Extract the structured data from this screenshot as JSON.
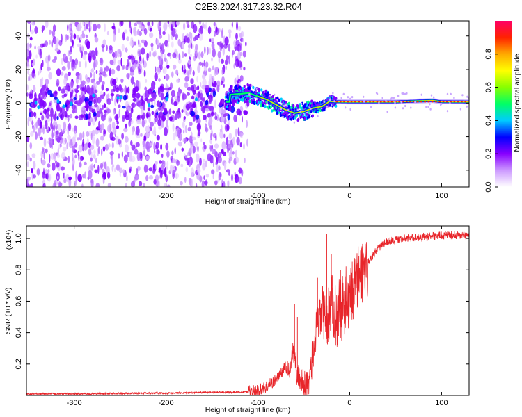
{
  "title": "C2E3.2024.317.23.32.R04",
  "chart_data": [
    {
      "type": "heatmap",
      "xlabel": "Height of straight line (km)",
      "ylabel": "Frequency (Hz)",
      "xlim": [
        -352,
        130
      ],
      "ylim": [
        -50,
        49
      ],
      "x_ticks": [
        -300,
        -200,
        -100,
        0,
        100
      ],
      "y_ticks": [
        -40,
        -20,
        0,
        20,
        40
      ],
      "grid": false,
      "colorbar": {
        "label": "Normalized spectral amplitude",
        "range": [
          0,
          1
        ],
        "ticks": [
          "0.0",
          "0.2",
          "0.4",
          "0.6",
          "0.8"
        ],
        "colors": [
          "#ffffff",
          "#cc99ff",
          "#8800ff",
          "#0000ff",
          "#00ccff",
          "#00ff66",
          "#88ff00",
          "#ffff00",
          "#ffaa00",
          "#ff2200",
          "#ff0066"
        ]
      },
      "carrier_trace": {
        "x": [
          -130,
          -110,
          -100,
          -90,
          -80,
          -70,
          -60,
          -50,
          -40,
          -30,
          -22,
          -15,
          0,
          50,
          90,
          100,
          130
        ],
        "y": [
          5,
          6,
          4,
          2,
          -1,
          -4,
          -6,
          -5,
          -3,
          -2,
          1,
          0.8,
          0.7,
          0.7,
          1.5,
          0.8,
          0.7
        ]
      },
      "noise_region_x": [
        -352,
        -110
      ]
    },
    {
      "type": "line",
      "xlabel": "Height of straight line (km)",
      "ylabel": "SNR (10 * v/v)",
      "y_multiplier": "(x10⁴)",
      "xlim": [
        -352,
        130
      ],
      "ylim": [
        0,
        1.08
      ],
      "x_ticks": [
        -300,
        -200,
        -100,
        0,
        100
      ],
      "y_ticks": [
        0.2,
        0.4,
        0.6,
        0.8,
        1.0
      ],
      "grid": false,
      "series": [
        {
          "color": "#e8252a",
          "x": [
            -352,
            -300,
            -200,
            -150,
            -120,
            -100,
            -90,
            -80,
            -70,
            -65,
            -62,
            -60,
            -58,
            -55,
            -50,
            -48,
            -45,
            -40,
            -38,
            -35,
            -30,
            -25,
            -20,
            -15,
            -10,
            -5,
            0,
            10,
            20,
            30,
            40,
            60,
            80,
            100,
            120,
            130
          ],
          "y": [
            0.01,
            0.01,
            0.015,
            0.02,
            0.02,
            0.03,
            0.06,
            0.1,
            0.18,
            0.16,
            0.3,
            0.25,
            0.13,
            0.12,
            0.07,
            0.06,
            0.1,
            0.25,
            0.35,
            0.45,
            0.55,
            0.45,
            0.6,
            0.5,
            0.55,
            0.6,
            0.65,
            0.75,
            0.85,
            0.93,
            0.98,
            1.0,
            1.01,
            1.02,
            1.02,
            1.02
          ]
        }
      ]
    }
  ]
}
